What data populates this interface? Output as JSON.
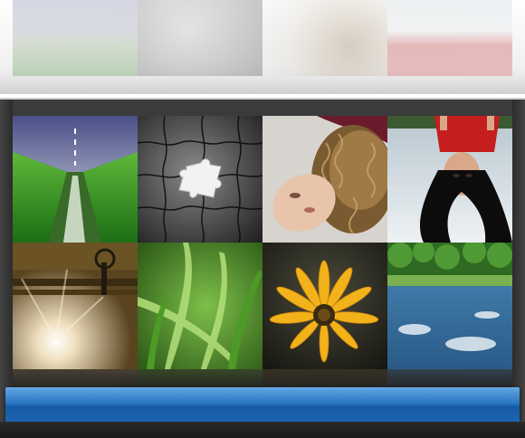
{
  "gallery": {
    "tiles": [
      {
        "subject": "road"
      },
      {
        "subject": "puzzle"
      },
      {
        "subject": "curly-hair-woman"
      },
      {
        "subject": "red-top-woman"
      },
      {
        "subject": "sunlit-wood"
      },
      {
        "subject": "green-grass"
      },
      {
        "subject": "yellow-flower"
      },
      {
        "subject": "reflected-lake"
      }
    ]
  }
}
